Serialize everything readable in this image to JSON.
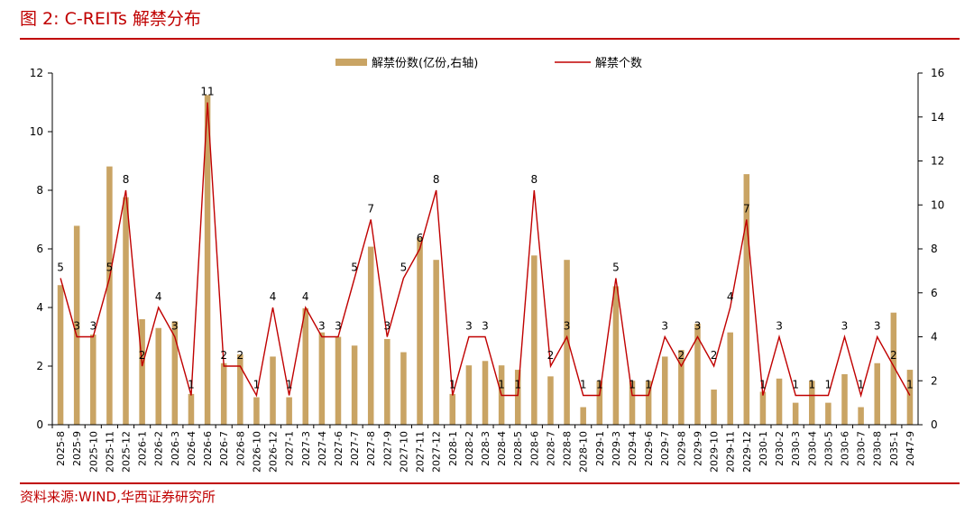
{
  "figure_title": "图 2:  C-REITs 解禁分布",
  "source_note": "资料来源:WIND,华西证券研究所",
  "colors": {
    "accent": "#c00000",
    "bar": "#c9a464",
    "line": "#c00000",
    "axis": "#000000"
  },
  "chart_data": {
    "type": "bar",
    "title": "",
    "legend_position": "top-center",
    "grid": false,
    "categories": [
      "2025-8",
      "2025-9",
      "2025-10",
      "2025-11",
      "2025-12",
      "2026-1",
      "2026-2",
      "2026-3",
      "2026-4",
      "2026-6",
      "2026-7",
      "2026-8",
      "2026-10",
      "2026-12",
      "2027-1",
      "2027-3",
      "2027-4",
      "2027-6",
      "2027-7",
      "2027-8",
      "2027-9",
      "2027-10",
      "2027-11",
      "2027-12",
      "2028-1",
      "2028-2",
      "2028-3",
      "2028-4",
      "2028-5",
      "2028-6",
      "2028-7",
      "2028-8",
      "2028-10",
      "2029-1",
      "2029-3",
      "2029-4",
      "2029-6",
      "2029-7",
      "2029-8",
      "2029-9",
      "2029-10",
      "2029-11",
      "2029-12",
      "2030-1",
      "2030-2",
      "2030-3",
      "2030-4",
      "2030-5",
      "2030-6",
      "2030-7",
      "2030-8",
      "2035-1",
      "2047-9"
    ],
    "series": [
      {
        "name": "解禁份数(亿份,右轴)",
        "type": "bar",
        "axis": "right",
        "values": [
          6.35,
          9.05,
          4.1,
          11.75,
          10.35,
          4.8,
          4.4,
          4.7,
          1.4,
          15.0,
          2.8,
          3.2,
          1.25,
          3.1,
          1.25,
          5.3,
          4.2,
          4.0,
          3.6,
          8.1,
          3.9,
          3.3,
          8.5,
          7.5,
          1.4,
          2.7,
          2.9,
          2.7,
          2.5,
          7.7,
          2.2,
          7.5,
          0.8,
          2.0,
          6.3,
          2.0,
          2.0,
          3.1,
          3.4,
          4.6,
          1.6,
          4.2,
          11.4,
          1.5,
          2.1,
          1.0,
          2.0,
          1.0,
          2.3,
          0.8,
          2.8,
          5.1,
          2.5
        ]
      },
      {
        "name": "解禁个数",
        "type": "line",
        "axis": "left",
        "values": [
          5,
          3,
          3,
          5,
          8,
          2,
          4,
          3,
          1,
          11,
          2,
          2,
          1,
          4,
          1,
          4,
          3,
          3,
          5,
          7,
          3,
          5,
          6,
          8,
          1,
          3,
          3,
          1,
          1,
          8,
          2,
          3,
          1,
          1,
          5,
          1,
          1,
          3,
          2,
          3,
          2,
          4,
          7,
          1,
          3,
          1,
          1,
          1,
          3,
          1,
          3,
          2,
          1
        ],
        "labels": [
          "5",
          "3",
          "3",
          "5",
          "8",
          "2",
          "4",
          "3",
          "1",
          "11",
          "2",
          "2",
          "1",
          "4",
          "1",
          "4",
          "3",
          "3",
          "5",
          "7",
          "3",
          "5",
          "6",
          "8",
          "1",
          "3",
          "3",
          "1",
          "1",
          "8",
          "2",
          "3",
          "1",
          "1",
          "5",
          "1",
          "1",
          "3",
          "2",
          "3",
          "2",
          "4",
          "7",
          "1",
          "3",
          "1",
          "1",
          "1",
          "3",
          "1",
          "3",
          "2",
          "1"
        ]
      }
    ],
    "y_left": {
      "min": 0,
      "max": 12,
      "ticks": [
        "0",
        "2",
        "4",
        "6",
        "8",
        "10",
        "12"
      ]
    },
    "y_right": {
      "min": 0,
      "max": 16,
      "ticks": [
        "0",
        "2",
        "4",
        "6",
        "8",
        "10",
        "12",
        "14",
        "16"
      ]
    }
  }
}
